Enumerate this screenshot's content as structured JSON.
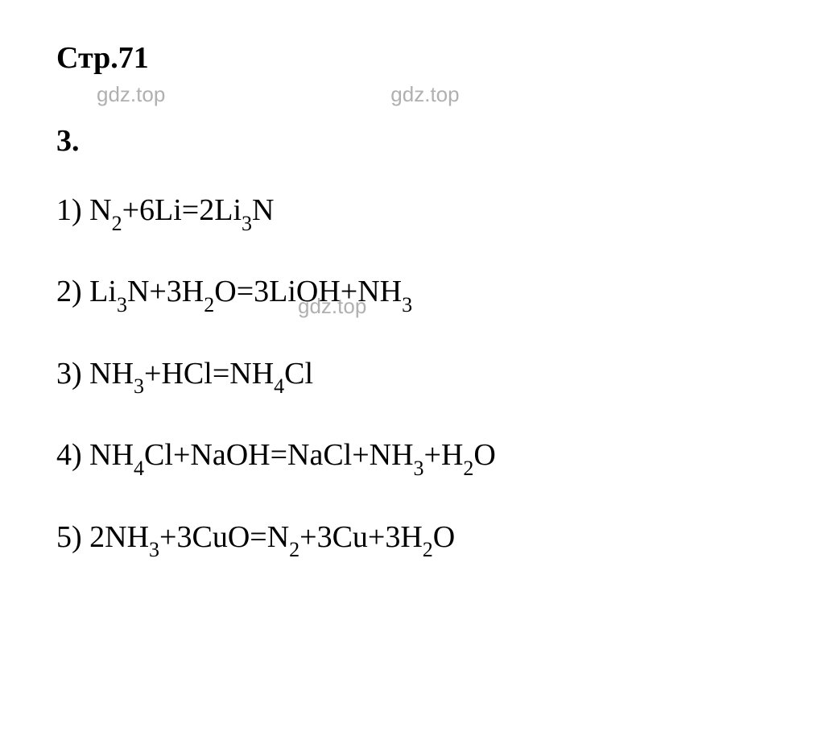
{
  "page": {
    "title": "Стр.71",
    "section": "3.",
    "watermark": "gdz.top",
    "background_color": "#ffffff",
    "text_color": "#000000",
    "watermark_color": "#b0b0b0",
    "font_family": "Times New Roman",
    "title_fontsize": 38,
    "equation_fontsize": 38,
    "subscript_fontsize": 26
  },
  "equations": [
    {
      "number": "1)",
      "parts": [
        "N",
        {
          "sub": "2"
        },
        "+6Li=2Li",
        {
          "sub": "3"
        },
        "N"
      ]
    },
    {
      "number": "2)",
      "parts": [
        "Li",
        {
          "sub": "3"
        },
        "N+3H",
        {
          "sub": "2"
        },
        "O=3LiOH+NH",
        {
          "sub": "3"
        }
      ]
    },
    {
      "number": "3)",
      "parts": [
        "NH",
        {
          "sub": "3"
        },
        "+HCl=NH",
        {
          "sub": "4"
        },
        "Cl"
      ]
    },
    {
      "number": "4)",
      "parts": [
        "NH",
        {
          "sub": "4"
        },
        "Cl+NaOH=NaCl+NH",
        {
          "sub": "3"
        },
        "+H",
        {
          "sub": "2"
        },
        "O"
      ]
    },
    {
      "number": "5)",
      "parts": [
        "2NH",
        {
          "sub": "3"
        },
        "+3CuO=N",
        {
          "sub": "2"
        },
        "+3Cu+3H",
        {
          "sub": "2"
        },
        "O"
      ]
    }
  ]
}
